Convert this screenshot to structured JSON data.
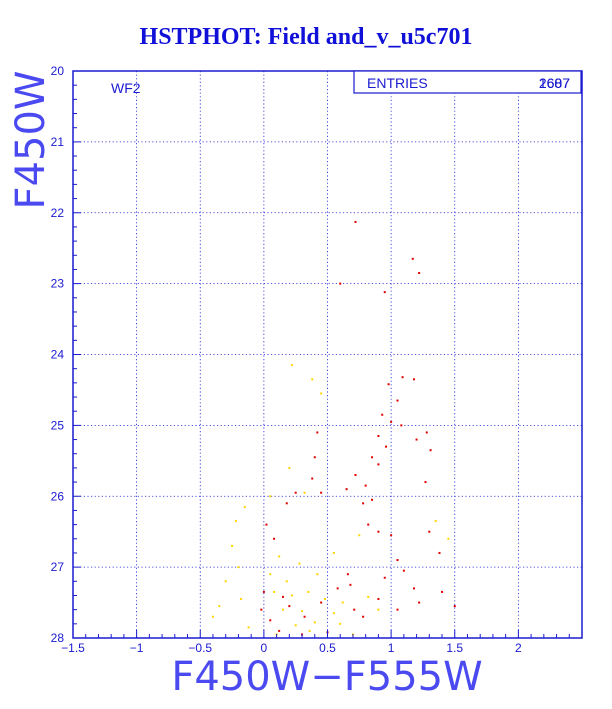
{
  "title": "HSTPHOT: Field and_v_u5c701",
  "chart_data": {
    "type": "scatter",
    "title": "HSTPHOT: Field and_v_u5c701",
    "xlabel": "F450W−F555W",
    "ylabel": "F450W",
    "xlim": [
      -1.5,
      2.5
    ],
    "ylim": [
      28,
      20
    ],
    "y_inverted": true,
    "xticks": [
      "−1.5",
      "−1",
      "−0.5",
      "0",
      "0.5",
      "1",
      "1.5",
      "2"
    ],
    "yticks": [
      "20",
      "21",
      "22",
      "23",
      "24",
      "25",
      "26",
      "27",
      "28"
    ],
    "grid": true,
    "panel_label": "WF2",
    "stats_box": {
      "label": "ENTRIES",
      "value": "1607",
      "overprint": "2687"
    },
    "series": [
      {
        "color": "#e00000",
        "points": [
          [
            0.72,
            22.13
          ],
          [
            1.17,
            22.65
          ],
          [
            1.22,
            22.85
          ],
          [
            0.6,
            23.0
          ],
          [
            0.95,
            23.12
          ],
          [
            1.09,
            24.32
          ],
          [
            1.18,
            24.35
          ],
          [
            0.98,
            24.42
          ],
          [
            1.05,
            24.65
          ],
          [
            0.93,
            24.85
          ],
          [
            1.0,
            24.95
          ],
          [
            1.08,
            25.0
          ],
          [
            0.9,
            25.15
          ],
          [
            0.96,
            25.3
          ],
          [
            0.85,
            25.45
          ],
          [
            0.9,
            25.55
          ],
          [
            1.28,
            25.1
          ],
          [
            1.2,
            25.2
          ],
          [
            1.31,
            25.35
          ],
          [
            0.42,
            25.1
          ],
          [
            0.4,
            25.45
          ],
          [
            0.38,
            25.75
          ],
          [
            0.45,
            25.95
          ],
          [
            0.72,
            25.7
          ],
          [
            0.8,
            25.85
          ],
          [
            0.65,
            25.9
          ],
          [
            0.85,
            26.05
          ],
          [
            0.78,
            26.1
          ],
          [
            1.27,
            25.8
          ],
          [
            0.82,
            26.4
          ],
          [
            0.25,
            25.95
          ],
          [
            0.18,
            26.1
          ],
          [
            0.9,
            26.5
          ],
          [
            1.0,
            26.55
          ],
          [
            1.3,
            26.5
          ],
          [
            1.38,
            26.8
          ],
          [
            1.05,
            26.9
          ],
          [
            1.1,
            27.05
          ],
          [
            0.95,
            27.15
          ],
          [
            1.18,
            27.3
          ],
          [
            1.4,
            27.35
          ],
          [
            1.5,
            27.55
          ],
          [
            1.22,
            27.5
          ],
          [
            1.05,
            27.6
          ],
          [
            0.9,
            27.45
          ],
          [
            0.02,
            26.4
          ],
          [
            0.08,
            26.6
          ],
          [
            0.0,
            27.35
          ],
          [
            -0.02,
            27.6
          ],
          [
            0.05,
            27.75
          ],
          [
            0.12,
            27.9
          ],
          [
            0.66,
            27.1
          ],
          [
            0.58,
            27.3
          ],
          [
            0.71,
            27.6
          ],
          [
            0.3,
            27.95
          ],
          [
            0.5,
            27.92
          ],
          [
            0.2,
            27.55
          ],
          [
            0.32,
            27.7
          ],
          [
            0.15,
            27.42
          ],
          [
            0.45,
            27.5
          ],
          [
            0.68,
            27.25
          ],
          [
            0.78,
            27.7
          ]
        ]
      },
      {
        "color": "#ffd600",
        "points": [
          [
            0.22,
            24.15
          ],
          [
            0.38,
            24.35
          ],
          [
            0.45,
            24.55
          ],
          [
            0.2,
            25.6
          ],
          [
            0.32,
            25.95
          ],
          [
            0.05,
            26.0
          ],
          [
            -0.15,
            26.15
          ],
          [
            -0.22,
            26.35
          ],
          [
            -0.25,
            26.7
          ],
          [
            -0.2,
            27.0
          ],
          [
            -0.3,
            27.2
          ],
          [
            -0.18,
            27.45
          ],
          [
            -0.35,
            27.55
          ],
          [
            -0.4,
            27.7
          ],
          [
            -0.12,
            27.85
          ],
          [
            0.1,
            27.95
          ],
          [
            0.25,
            27.82
          ],
          [
            0.4,
            27.78
          ],
          [
            0.55,
            27.65
          ],
          [
            0.62,
            27.5
          ],
          [
            0.82,
            27.42
          ],
          [
            0.9,
            27.6
          ],
          [
            0.35,
            27.35
          ],
          [
            0.18,
            27.2
          ],
          [
            0.42,
            27.1
          ],
          [
            0.28,
            26.95
          ],
          [
            0.12,
            26.85
          ],
          [
            0.55,
            26.8
          ],
          [
            0.75,
            26.55
          ],
          [
            1.35,
            26.35
          ],
          [
            1.45,
            26.6
          ],
          [
            0.05,
            27.1
          ],
          [
            0.15,
            27.6
          ],
          [
            0.3,
            27.62
          ],
          [
            0.48,
            27.45
          ],
          [
            0.22,
            27.4
          ],
          [
            0.6,
            27.8
          ],
          [
            0.08,
            27.35
          ],
          [
            0.36,
            27.9
          ],
          [
            0.7,
            27.95
          ]
        ]
      }
    ]
  }
}
